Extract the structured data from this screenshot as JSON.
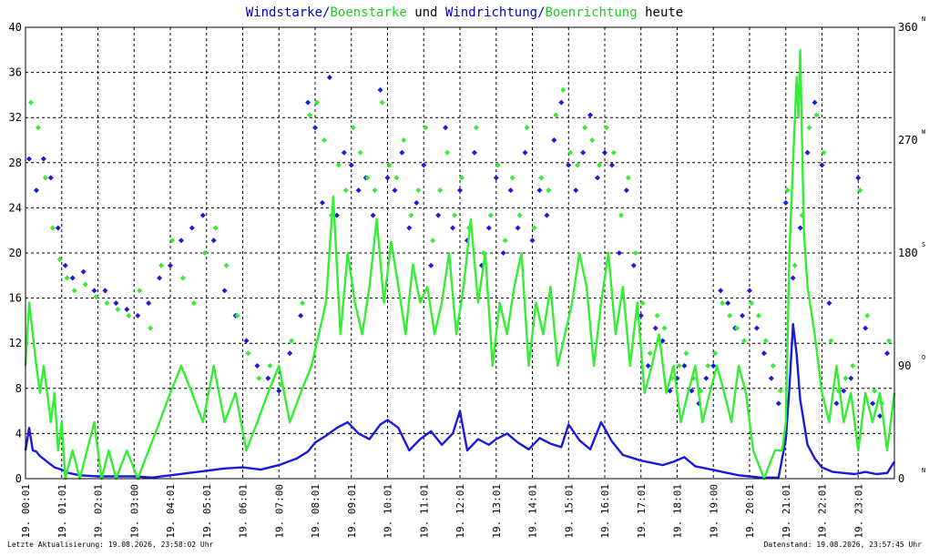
{
  "chart_data": {
    "type": "line",
    "title_parts": [
      {
        "text": "Windstarke/",
        "color": "#0000cc"
      },
      {
        "text": "Boenstarke",
        "color": "#22cc22"
      },
      {
        "text": " und ",
        "color": "#000000"
      },
      {
        "text": "Windrichtung/",
        "color": "#0000cc"
      },
      {
        "text": "Boenrichtung",
        "color": "#22cc22"
      },
      {
        "text": " heute",
        "color": "#000000"
      }
    ],
    "ylim": [
      0,
      40
    ],
    "yticks": [
      "0",
      "4",
      "8",
      "12",
      "16",
      "20",
      "24",
      "28",
      "32",
      "36",
      "40"
    ],
    "y2lim": [
      0,
      360
    ],
    "y2ticks": [
      "0",
      "90",
      "180",
      "270",
      "360"
    ],
    "compass_labels": [
      "N",
      "O",
      "S",
      "W",
      "N"
    ],
    "xlim": [
      0,
      24
    ],
    "xticks": [
      "19. 00:01",
      "19. 01:01",
      "19. 02:01",
      "19. 03:00",
      "19. 04:01",
      "19. 05:01",
      "19. 06:01",
      "19. 07:00",
      "19. 08:01",
      "19. 09:01",
      "19. 10:01",
      "19. 11:01",
      "19. 12:01",
      "19. 13:01",
      "19. 14:01",
      "19. 15:01",
      "19. 16:01",
      "19. 17:01",
      "19. 18:01",
      "19. 19:00",
      "19. 20:01",
      "19. 21:01",
      "19. 22:01",
      "19. 23:01"
    ],
    "grid": true,
    "series": [
      {
        "name": "Windstarke",
        "kind": "line",
        "axis": "left",
        "color": "#1a1add",
        "x": [
          0,
          0.1,
          0.2,
          0.3,
          0.4,
          0.6,
          0.8,
          1.0,
          1.2,
          1.5,
          2.0,
          2.5,
          3.0,
          3.5,
          4.0,
          4.5,
          5.0,
          5.5,
          6.0,
          6.5,
          7.0,
          7.5,
          7.8,
          8.0,
          8.3,
          8.6,
          8.9,
          9.2,
          9.5,
          9.8,
          10.0,
          10.3,
          10.6,
          10.9,
          11.2,
          11.5,
          11.8,
          12.0,
          12.2,
          12.5,
          12.8,
          13.0,
          13.3,
          13.6,
          13.9,
          14.2,
          14.5,
          14.8,
          15.0,
          15.3,
          15.6,
          15.9,
          16.2,
          16.5,
          16.8,
          17.0,
          17.3,
          17.6,
          17.9,
          18.2,
          18.5,
          18.8,
          19.1,
          19.4,
          19.7,
          20.0,
          20.3,
          20.6,
          20.8,
          21.0,
          21.1,
          21.2,
          21.3,
          21.4,
          21.5,
          21.6,
          21.8,
          22.0,
          22.3,
          22.6,
          22.9,
          23.2,
          23.5,
          23.8,
          24.0
        ],
        "y": [
          2.5,
          4.5,
          2.5,
          2.4,
          2.0,
          1.5,
          1.0,
          0.8,
          0.5,
          0.3,
          0.2,
          0.2,
          0.2,
          0.1,
          0.3,
          0.5,
          0.7,
          0.9,
          1.0,
          0.8,
          1.2,
          1.8,
          2.4,
          3.2,
          3.8,
          4.5,
          5.0,
          4.0,
          3.5,
          4.8,
          5.2,
          4.5,
          2.5,
          3.5,
          4.2,
          3.0,
          4.0,
          6.0,
          2.5,
          3.5,
          3.0,
          3.5,
          4.0,
          3.2,
          2.6,
          3.6,
          3.1,
          2.8,
          4.8,
          3.4,
          2.6,
          5.0,
          3.3,
          2.1,
          1.8,
          1.6,
          1.4,
          1.2,
          1.5,
          1.9,
          1.1,
          0.9,
          0.7,
          0.5,
          0.3,
          0.2,
          0.1,
          0.1,
          0.1,
          3.5,
          8.0,
          13.7,
          11.0,
          7.0,
          5.0,
          3.0,
          1.8,
          1.0,
          0.6,
          0.5,
          0.4,
          0.6,
          0.4,
          0.5,
          1.5
        ]
      },
      {
        "name": "Boenstarke",
        "kind": "line",
        "axis": "left",
        "color": "#33ee33",
        "x": [
          0,
          0.1,
          0.2,
          0.3,
          0.4,
          0.5,
          0.6,
          0.7,
          0.8,
          0.9,
          1.0,
          1.1,
          1.3,
          1.5,
          1.7,
          1.9,
          2.1,
          2.3,
          2.5,
          2.8,
          3.1,
          3.4,
          3.7,
          4.0,
          4.3,
          4.6,
          4.9,
          5.2,
          5.5,
          5.8,
          6.1,
          6.4,
          6.7,
          7.0,
          7.3,
          7.6,
          7.9,
          8.1,
          8.3,
          8.5,
          8.7,
          8.9,
          9.1,
          9.3,
          9.5,
          9.7,
          9.9,
          10.1,
          10.3,
          10.5,
          10.7,
          10.9,
          11.1,
          11.3,
          11.5,
          11.7,
          11.9,
          12.1,
          12.3,
          12.5,
          12.7,
          12.9,
          13.1,
          13.3,
          13.5,
          13.7,
          13.9,
          14.1,
          14.3,
          14.5,
          14.7,
          14.9,
          15.1,
          15.3,
          15.5,
          15.7,
          15.9,
          16.1,
          16.3,
          16.5,
          16.7,
          16.9,
          17.1,
          17.3,
          17.5,
          17.7,
          17.9,
          18.1,
          18.3,
          18.5,
          18.7,
          18.9,
          19.1,
          19.3,
          19.5,
          19.7,
          19.9,
          20.1,
          20.4,
          20.7,
          20.9,
          21.0,
          21.1,
          21.2,
          21.3,
          21.35,
          21.4,
          21.45,
          21.5,
          21.6,
          21.8,
          22.0,
          22.2,
          22.4,
          22.6,
          22.8,
          23.0,
          23.2,
          23.4,
          23.6,
          23.8,
          24.0
        ],
        "y": [
          10.0,
          15.6,
          12.8,
          10.0,
          7.6,
          10.0,
          7.6,
          5.0,
          7.6,
          2.5,
          5.0,
          0.0,
          2.5,
          0.0,
          2.5,
          5.0,
          0.0,
          2.5,
          0.0,
          2.5,
          0.0,
          2.5,
          5.0,
          7.6,
          10.0,
          7.6,
          5.0,
          10.0,
          5.0,
          7.6,
          2.5,
          5.0,
          7.6,
          10.0,
          5.0,
          7.6,
          10.0,
          12.8,
          15.6,
          25.0,
          12.8,
          20.0,
          15.6,
          12.8,
          17.0,
          23.0,
          15.6,
          21.0,
          17.0,
          12.8,
          19.0,
          15.6,
          17.0,
          12.8,
          15.6,
          20.0,
          12.8,
          17.0,
          23.0,
          15.6,
          20.0,
          10.0,
          15.6,
          12.8,
          17.0,
          20.0,
          10.0,
          15.6,
          12.8,
          17.0,
          10.0,
          12.8,
          15.6,
          20.0,
          17.0,
          10.0,
          15.6,
          20.0,
          12.8,
          17.0,
          10.0,
          15.6,
          7.6,
          10.0,
          12.8,
          7.6,
          10.0,
          5.0,
          7.6,
          10.0,
          5.0,
          7.6,
          10.0,
          7.6,
          5.0,
          10.0,
          7.6,
          2.5,
          0.0,
          2.5,
          2.5,
          5.0,
          20.0,
          28.0,
          35.6,
          32.0,
          38.0,
          30.0,
          22.0,
          17.0,
          12.8,
          7.6,
          5.0,
          10.0,
          5.0,
          7.6,
          2.5,
          7.6,
          5.0,
          7.6,
          2.5,
          7.6
        ]
      },
      {
        "name": "Windrichtung",
        "kind": "scatter",
        "axis": "right",
        "color": "#1a1add",
        "x": [
          0.1,
          0.3,
          0.5,
          0.7,
          0.9,
          1.1,
          1.3,
          1.6,
          1.9,
          2.2,
          2.5,
          2.8,
          3.1,
          3.4,
          3.7,
          4.0,
          4.3,
          4.6,
          4.9,
          5.2,
          5.5,
          5.8,
          6.1,
          6.4,
          6.7,
          7.0,
          7.3,
          7.6,
          7.8,
          8.0,
          8.2,
          8.4,
          8.6,
          8.8,
          9.0,
          9.2,
          9.4,
          9.6,
          9.8,
          10.0,
          10.2,
          10.4,
          10.6,
          10.8,
          11.0,
          11.2,
          11.4,
          11.6,
          11.8,
          12.0,
          12.2,
          12.4,
          12.6,
          12.8,
          13.0,
          13.2,
          13.4,
          13.6,
          13.8,
          14.0,
          14.2,
          14.4,
          14.6,
          14.8,
          15.0,
          15.2,
          15.4,
          15.6,
          15.8,
          16.0,
          16.2,
          16.4,
          16.6,
          16.8,
          17.0,
          17.2,
          17.4,
          17.6,
          17.8,
          18.0,
          18.2,
          18.4,
          18.6,
          18.8,
          19.0,
          19.2,
          19.4,
          19.6,
          19.8,
          20.0,
          20.2,
          20.4,
          20.6,
          20.8,
          21.0,
          21.2,
          21.4,
          21.6,
          21.8,
          22.0,
          22.2,
          22.4,
          22.6,
          22.8,
          23.0,
          23.2,
          23.4,
          23.6,
          23.8
        ],
        "y": [
          255,
          230,
          255,
          240,
          200,
          170,
          160,
          165,
          150,
          150,
          140,
          135,
          130,
          140,
          160,
          170,
          190,
          200,
          210,
          190,
          150,
          130,
          110,
          90,
          80,
          70,
          100,
          130,
          300,
          280,
          220,
          320,
          210,
          260,
          250,
          230,
          240,
          210,
          310,
          240,
          230,
          260,
          200,
          220,
          250,
          170,
          210,
          280,
          200,
          230,
          190,
          260,
          170,
          200,
          240,
          180,
          230,
          200,
          260,
          190,
          230,
          210,
          270,
          300,
          250,
          230,
          260,
          290,
          240,
          260,
          250,
          180,
          230,
          170,
          130,
          90,
          120,
          110,
          70,
          80,
          90,
          70,
          60,
          80,
          90,
          150,
          140,
          120,
          130,
          150,
          120,
          100,
          80,
          60,
          220,
          160,
          200,
          260,
          300,
          250,
          140,
          60,
          70,
          80,
          240,
          120,
          60,
          50,
          100
        ]
      },
      {
        "name": "Boenrichtung",
        "kind": "scatter",
        "axis": "right",
        "color": "#33ee33",
        "x": [
          0.15,
          0.35,
          0.55,
          0.75,
          0.95,
          1.15,
          1.35,
          1.65,
          1.95,
          2.25,
          2.55,
          2.85,
          3.15,
          3.45,
          3.75,
          4.05,
          4.35,
          4.65,
          4.95,
          5.25,
          5.55,
          5.85,
          6.15,
          6.45,
          6.75,
          7.05,
          7.35,
          7.65,
          7.85,
          8.05,
          8.25,
          8.45,
          8.65,
          8.85,
          9.05,
          9.25,
          9.45,
          9.65,
          9.85,
          10.05,
          10.25,
          10.45,
          10.65,
          10.85,
          11.05,
          11.25,
          11.45,
          11.65,
          11.85,
          12.05,
          12.25,
          12.45,
          12.65,
          12.85,
          13.05,
          13.25,
          13.45,
          13.65,
          13.85,
          14.05,
          14.25,
          14.45,
          14.65,
          14.85,
          15.05,
          15.25,
          15.45,
          15.65,
          15.85,
          16.05,
          16.25,
          16.45,
          16.65,
          16.85,
          17.05,
          17.25,
          17.45,
          17.65,
          17.85,
          18.05,
          18.25,
          18.45,
          18.65,
          18.85,
          19.05,
          19.25,
          19.45,
          19.65,
          19.85,
          20.05,
          20.25,
          20.45,
          20.65,
          20.85,
          21.05,
          21.25,
          21.45,
          21.65,
          21.85,
          22.05,
          22.25,
          22.45,
          22.65,
          22.85,
          23.05,
          23.25,
          23.45,
          23.65,
          23.85
        ],
        "y": [
          300,
          280,
          240,
          200,
          175,
          160,
          150,
          155,
          145,
          140,
          135,
          130,
          150,
          120,
          170,
          190,
          160,
          140,
          180,
          200,
          170,
          130,
          100,
          80,
          90,
          75,
          110,
          140,
          290,
          300,
          270,
          210,
          250,
          230,
          280,
          260,
          240,
          230,
          300,
          250,
          240,
          270,
          210,
          230,
          280,
          190,
          230,
          260,
          210,
          240,
          200,
          280,
          180,
          210,
          250,
          190,
          240,
          210,
          280,
          200,
          240,
          230,
          290,
          310,
          260,
          250,
          280,
          270,
          250,
          280,
          260,
          210,
          240,
          180,
          140,
          100,
          130,
          120,
          80,
          90,
          100,
          80,
          70,
          90,
          100,
          140,
          130,
          120,
          110,
          140,
          130,
          110,
          90,
          70,
          230,
          170,
          210,
          280,
          290,
          260,
          110,
          70,
          80,
          90,
          230,
          130,
          70,
          60,
          110
        ]
      }
    ]
  },
  "footer": {
    "left": "Letzte Aktualisierung: 19.08.2026, 23:58:02 Uhr",
    "right": "Datenstand: 19.08.2026, 23:57:45 Uhr"
  }
}
